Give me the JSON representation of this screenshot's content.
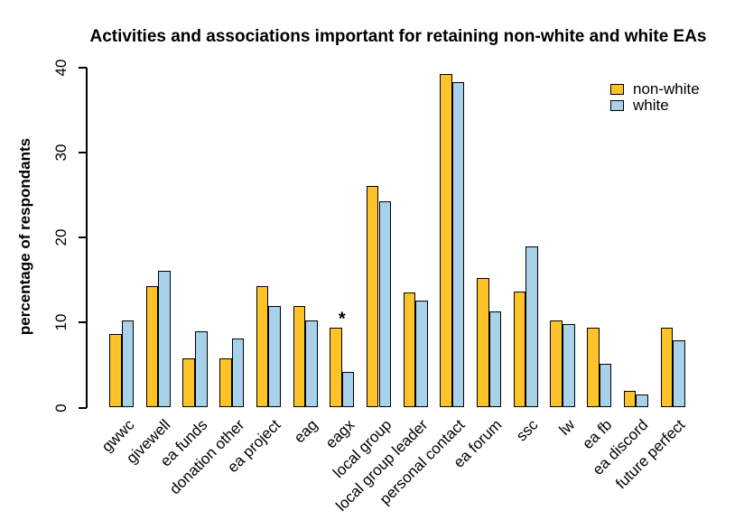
{
  "title": "Activities and associations important for retaining non-white and white EAs",
  "y_axis": {
    "label": "percentage of respondants",
    "tick_labels": [
      "0",
      "10",
      "20",
      "30",
      "40"
    ]
  },
  "legend": {
    "items": [
      {
        "label": "non-white",
        "color": "#FDC328"
      },
      {
        "label": "white",
        "color": "#A8D1EA"
      }
    ]
  },
  "annotation": {
    "symbol": "*",
    "category": "eagx"
  },
  "chart_data": {
    "type": "bar",
    "title": "Activities and associations important for retaining non-white and white EAs",
    "xlabel": "",
    "ylabel": "percentage of respondants",
    "ylim": [
      0,
      40
    ],
    "yticks": [
      0,
      10,
      20,
      30,
      40
    ],
    "grid": false,
    "legend_position": "top-right",
    "bar_border_color": "#000000",
    "categories": [
      "gwwc",
      "givewell",
      "ea funds",
      "donation other",
      "ea project",
      "eag",
      "eagx",
      "local group",
      "local group leader",
      "personal contact",
      "ea forum",
      "ssc",
      "lw",
      "ea fb",
      "ea discord",
      "future perfect"
    ],
    "series": [
      {
        "name": "non-white",
        "color": "#FDC328",
        "values": [
          8.7,
          14.3,
          5.8,
          5.8,
          14.3,
          11.9,
          9.4,
          26.1,
          13.5,
          39.3,
          15.2,
          13.6,
          10.2,
          9.4,
          2.0,
          9.4
        ]
      },
      {
        "name": "white",
        "color": "#A8D1EA",
        "values": [
          10.2,
          16.1,
          9.0,
          8.1,
          11.9,
          10.2,
          4.2,
          24.3,
          12.6,
          38.3,
          11.3,
          19.0,
          9.8,
          5.1,
          1.5,
          7.9
        ]
      }
    ],
    "annotations": [
      {
        "text": "*",
        "category": "eagx",
        "position": "above-group"
      }
    ]
  }
}
